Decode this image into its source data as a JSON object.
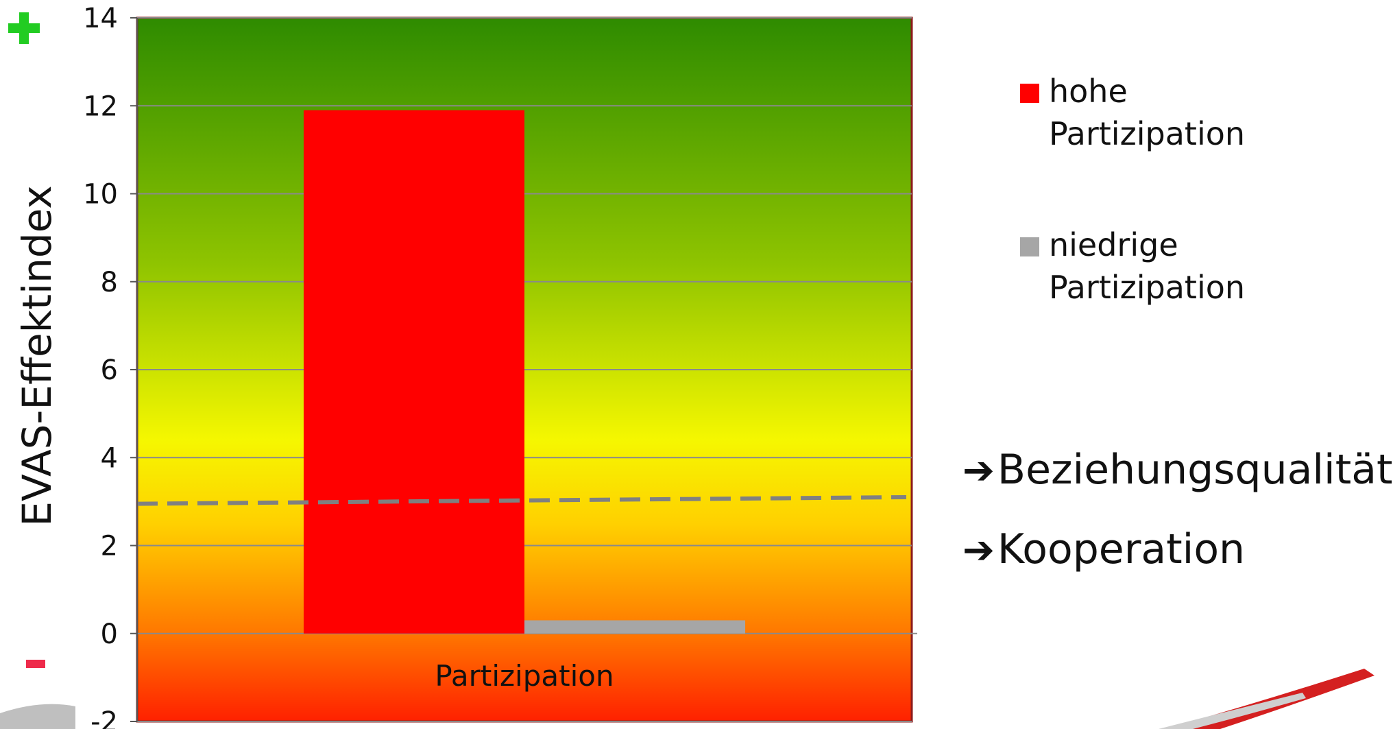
{
  "chart_data": {
    "type": "bar",
    "categories": [
      "Partizipation"
    ],
    "series": [
      {
        "name": "hohe Partizipation",
        "values": [
          11.9
        ],
        "color": "#ff0000"
      },
      {
        "name": "niedrige Partizipation",
        "values": [
          0.3
        ],
        "color": "#a6a6a6"
      }
    ],
    "ylabel": "EVAS-Effektindex",
    "ylim": [
      -2,
      14
    ],
    "yticks": [
      -2,
      0,
      2,
      4,
      6,
      8,
      10,
      12,
      14
    ],
    "reference_line": {
      "y_start": 2.95,
      "y_end": 3.1,
      "style": "dashed",
      "color": "#808080"
    },
    "grid": true,
    "legend_position": "right",
    "background": "gradient red-yellow-green",
    "markers": {
      "top": "+",
      "bottom": "-"
    }
  },
  "notes": [
    {
      "arrow": "➔",
      "text": "Beziehungsqualität"
    },
    {
      "arrow": "➔",
      "text": "Kooperation"
    }
  ]
}
